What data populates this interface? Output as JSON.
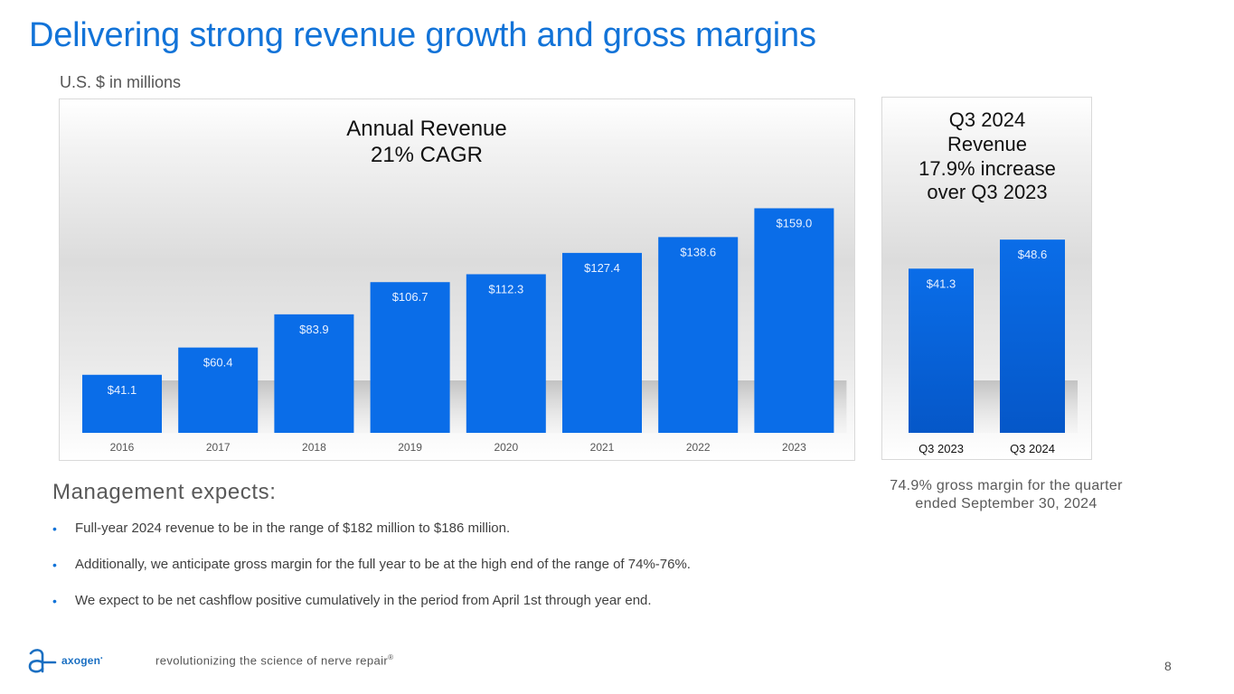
{
  "slide": {
    "title": "Delivering strong revenue growth and gross margins",
    "units_note": "U.S. $ in millions",
    "page_number": "8"
  },
  "colors": {
    "title_blue": "#1273d8",
    "bar_blue": "#0a6de8"
  },
  "chart_data": [
    {
      "type": "bar",
      "title": "Annual Revenue",
      "subtitle": "21% CAGR",
      "categories": [
        "2016",
        "2017",
        "2018",
        "2019",
        "2020",
        "2021",
        "2022",
        "2023"
      ],
      "values": [
        41.1,
        60.4,
        83.9,
        106.7,
        112.3,
        127.4,
        138.6,
        159.0
      ],
      "data_labels": [
        "$41.1",
        "$60.4",
        "$83.9",
        "$106.7",
        "$112.3",
        "$127.4",
        "$138.6",
        "$159.0"
      ],
      "xlabel": "",
      "ylabel": "",
      "ylim": [
        0,
        200
      ],
      "grid": false,
      "legend": "none"
    },
    {
      "type": "bar",
      "title_lines": [
        "Q3 2024",
        "Revenue",
        "17.9% increase",
        "over Q3 2023"
      ],
      "categories": [
        "Q3 2023",
        "Q3 2024"
      ],
      "values": [
        41.3,
        48.6
      ],
      "data_labels": [
        "$41.3",
        "$48.6"
      ],
      "xlabel": "",
      "ylabel": "",
      "ylim": [
        0,
        65
      ],
      "grid": false,
      "legend": "none"
    }
  ],
  "gross_margin_note": {
    "line1": "74.9% gross margin for the quarter",
    "line2": "ended September 30, 2024"
  },
  "management": {
    "heading": "Management expects:",
    "bullets": [
      "Full-year 2024 revenue to be in the range of $182 million to $186 million.",
      "Additionally, we anticipate gross margin for the full year to be at the high end of the range of 74%-76%.",
      "We expect to be net cashflow positive cumulatively in the period from April 1st through year end."
    ],
    "bullet_glyph": "•"
  },
  "footer": {
    "logo_icon": "axogen-ae-ligature-icon",
    "logo_text": "axogen",
    "logo_mark": "•",
    "tagline": "revolutionizing the science of nerve repair",
    "tagline_mark": "®"
  }
}
